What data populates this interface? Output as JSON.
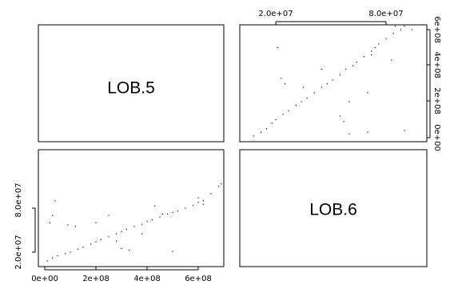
{
  "chart_data": {
    "type": "scatter",
    "layout": "pairs-matrix",
    "variables": [
      "LOB.5",
      "LOB.6"
    ],
    "diagonal_labels": [
      "LOB.5",
      "LOB.6"
    ],
    "point_color": "#000000",
    "background_color": "#ffffff",
    "axes": {
      "lob5": {
        "range": [
          0,
          700000000
        ],
        "ticks": [
          0,
          200000000,
          400000000,
          600000000
        ],
        "tick_labels": [
          "0e+00",
          "2e+08",
          "4e+08",
          "6e+08"
        ]
      },
      "lob6": {
        "range": [
          0,
          120000000
        ],
        "ticks": [
          20000000,
          80000000
        ],
        "tick_labels": [
          "2.0e+07",
          "8.0e+07"
        ]
      }
    },
    "panels": [
      {
        "position": "upper-right",
        "x_variable": "LOB.6",
        "y_variable": "LOB.5",
        "top_axis": {
          "variable": "lob6"
        },
        "right_axis": {
          "variable": "lob5"
        }
      },
      {
        "position": "lower-left",
        "x_variable": "LOB.5",
        "y_variable": "LOB.6",
        "bottom_axis": {
          "variable": "lob5"
        },
        "left_axis": {
          "variable": "lob6"
        }
      }
    ],
    "points": [
      [
        10000000,
        8000000
      ],
      [
        30000000,
        12000000
      ],
      [
        50000000,
        15000000
      ],
      [
        80000000,
        18000000
      ],
      [
        100000000,
        20000000
      ],
      [
        130000000,
        24000000
      ],
      [
        150000000,
        27000000
      ],
      [
        180000000,
        31000000
      ],
      [
        200000000,
        34000000
      ],
      [
        220000000,
        37000000
      ],
      [
        250000000,
        41000000
      ],
      [
        280000000,
        45000000
      ],
      [
        300000000,
        48000000
      ],
      [
        320000000,
        51000000
      ],
      [
        350000000,
        55000000
      ],
      [
        380000000,
        58000000
      ],
      [
        400000000,
        62000000
      ],
      [
        420000000,
        64000000
      ],
      [
        450000000,
        68000000
      ],
      [
        480000000,
        72000000
      ],
      [
        500000000,
        74000000
      ],
      [
        520000000,
        76000000
      ],
      [
        550000000,
        80000000
      ],
      [
        580000000,
        84000000
      ],
      [
        600000000,
        88000000
      ],
      [
        620000000,
        90000000
      ],
      [
        650000000,
        100000000
      ],
      [
        680000000,
        110000000
      ],
      [
        690000000,
        113000000
      ],
      [
        20000000,
        60000000
      ],
      [
        30000000,
        70000000
      ],
      [
        40000000,
        90000000
      ],
      [
        90000000,
        57000000
      ],
      [
        120000000,
        55000000
      ],
      [
        200000000,
        60000000
      ],
      [
        250000000,
        70000000
      ],
      [
        280000000,
        35000000
      ],
      [
        300000000,
        25000000
      ],
      [
        330000000,
        23000000
      ],
      [
        380000000,
        45000000
      ],
      [
        430000000,
        83000000
      ],
      [
        460000000,
        72000000
      ],
      [
        500000000,
        21000000
      ],
      [
        600000000,
        94000000
      ],
      [
        620000000,
        85000000
      ]
    ]
  }
}
